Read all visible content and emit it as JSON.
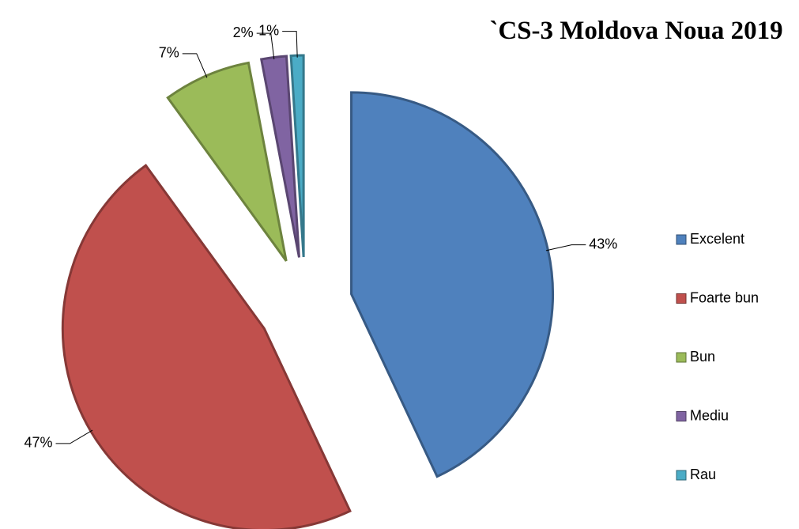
{
  "chart_data": {
    "type": "pie",
    "title": "`CS-3 Moldova Noua 2019",
    "categories": [
      "Excelent",
      "Foarte bun",
      "Bun",
      "Mediu",
      "Rau"
    ],
    "values": [
      43,
      47,
      7,
      2,
      1
    ],
    "value_labels": [
      "43%",
      "47%",
      "7%",
      "2%",
      "1%"
    ],
    "colors": [
      "#4f81bd",
      "#c0504d",
      "#9bbb59",
      "#8064a2",
      "#4bacc6"
    ],
    "legend": "right"
  }
}
